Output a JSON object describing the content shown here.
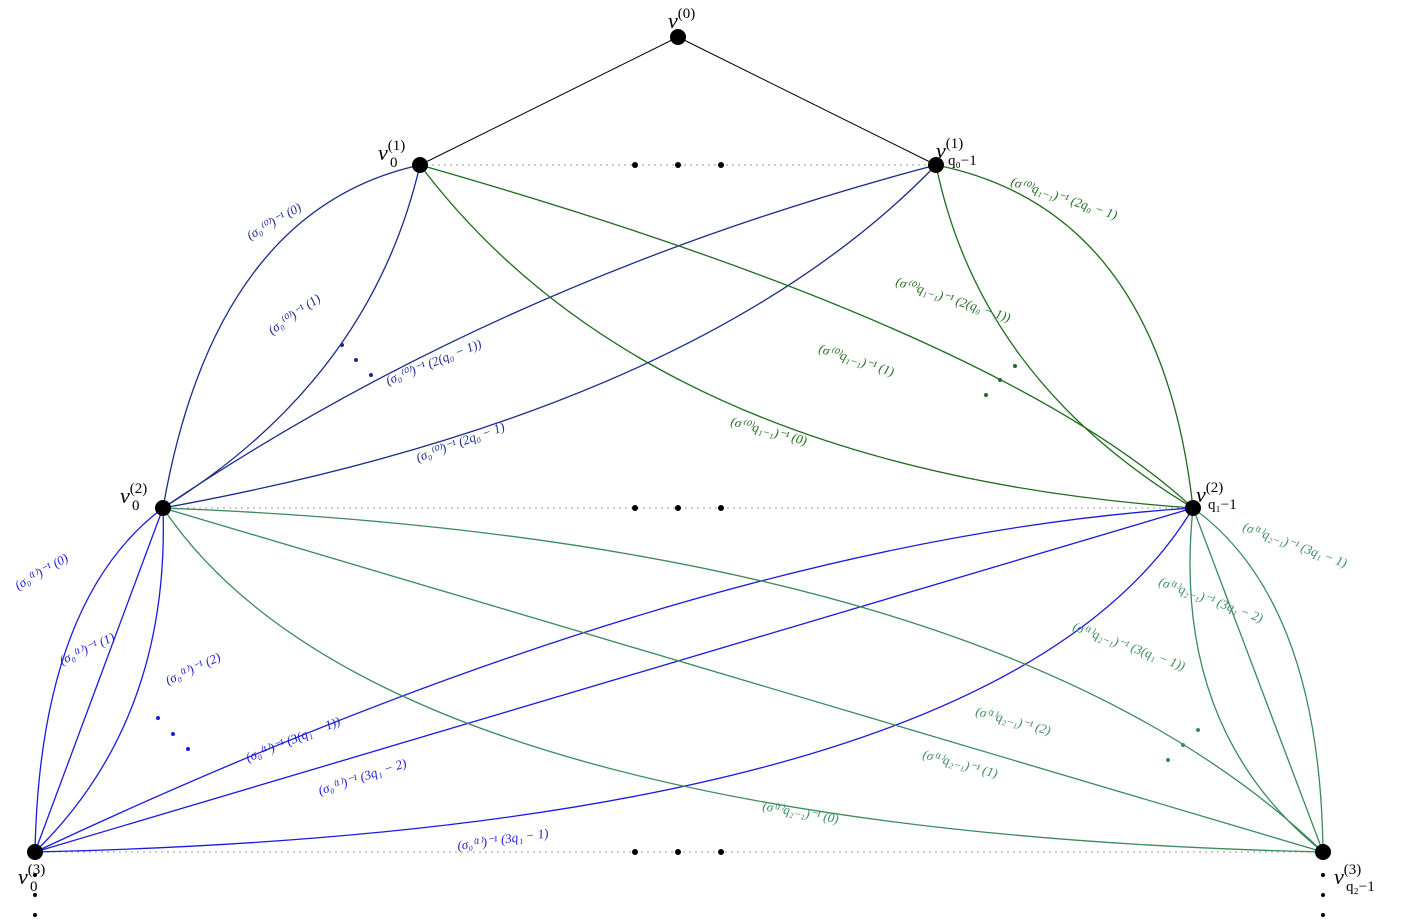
{
  "nodes": [
    {
      "base": "v",
      "sup": "(0)",
      "sub": ""
    },
    {
      "base": "v",
      "sup": "(1)",
      "sub": "0"
    },
    {
      "base": "v",
      "sup": "(1)",
      "sub": "q₀−1"
    },
    {
      "base": "v",
      "sup": "(2)",
      "sub": "0"
    },
    {
      "base": "v",
      "sup": "(2)",
      "sub": "q₁−1"
    },
    {
      "base": "v",
      "sup": "(3)",
      "sub": "0"
    },
    {
      "base": "v",
      "sup": "(3)",
      "sub": "q₂−1"
    }
  ],
  "edge_labels": [
    "(σ₀⁽⁰⁾)⁻¹ (0)",
    "(σ₀⁽⁰⁾)⁻¹ (1)",
    "(σ₀⁽⁰⁾)⁻¹ (2(q₀ − 1))",
    "(σ₀⁽⁰⁾)⁻¹ (2q₀ − 1)",
    "(σ⁽⁰⁾q₁₋₁)⁻¹ (2q₀ − 1)",
    "(σ⁽⁰⁾q₁₋₁)⁻¹ (2(q₀ − 1))",
    "(σ⁽⁰⁾q₁₋₁)⁻¹ (1)",
    "(σ⁽⁰⁾q₁₋₁)⁻¹ (0)",
    "(σ₀⁽¹⁾)⁻¹ (0)",
    "(σ₀⁽¹⁾)⁻¹ (1)",
    "(σ₀⁽¹⁾)⁻¹ (2)",
    "(σ₀⁽¹⁾)⁻¹ (3(q₁ − 1))",
    "(σ₀⁽¹⁾)⁻¹ (3q₁ − 2)",
    "(σ₀⁽¹⁾)⁻¹ (3q₁ − 1)",
    "(σ⁽¹⁾q₂₋₁)⁻¹ (3q₁ − 1)",
    "(σ⁽¹⁾q₂₋₁)⁻¹ (3q₁ − 2)",
    "(σ⁽¹⁾q₂₋₁)⁻¹ (3(q₁ − 1))",
    "(σ⁽¹⁾q₂₋₁)⁻¹ (2)",
    "(σ⁽¹⁾q₂₋₁)⁻¹ (1)",
    "(σ⁽¹⁾q₂₋₁)⁻¹ (0)"
  ]
}
